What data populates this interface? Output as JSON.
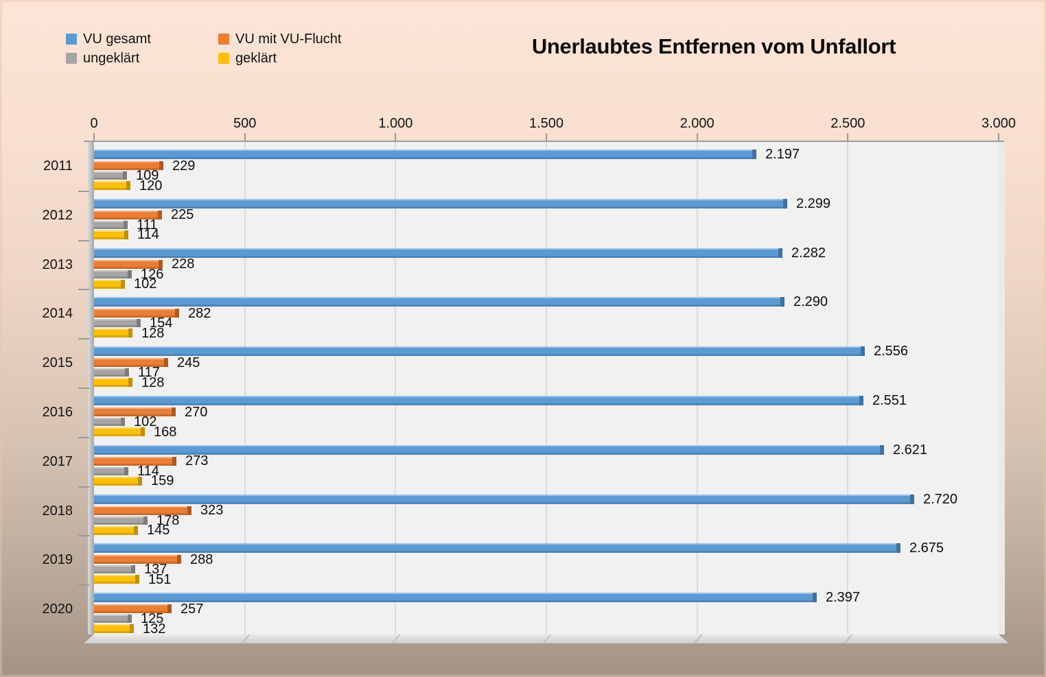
{
  "chart_data": {
    "type": "bar",
    "orientation": "horizontal",
    "title": "Unerlaubtes Entfernen vom Unfallort",
    "categories": [
      "2011",
      "2012",
      "2013",
      "2014",
      "2015",
      "2016",
      "2017",
      "2018",
      "2019",
      "2020"
    ],
    "series": [
      {
        "name": "VU gesamt",
        "color": "#5B9BD5",
        "edge_color": "#41719C",
        "values": [
          2197,
          2299,
          2282,
          2290,
          2556,
          2551,
          2621,
          2720,
          2675,
          2397
        ]
      },
      {
        "name": "VU mit VU-Flucht",
        "color": "#ED7D31",
        "edge_color": "#AE5A21",
        "values": [
          229,
          225,
          228,
          282,
          245,
          270,
          273,
          323,
          288,
          257
        ]
      },
      {
        "name": "ungeklärt",
        "color": "#A5A5A5",
        "edge_color": "#7C7C7C",
        "values": [
          109,
          111,
          126,
          154,
          117,
          102,
          114,
          178,
          137,
          125
        ]
      },
      {
        "name": "geklärt",
        "color": "#FFC000",
        "edge_color": "#BF9000",
        "values": [
          120,
          114,
          102,
          128,
          128,
          168,
          159,
          145,
          151,
          132
        ]
      }
    ],
    "x_ticks": [
      "0",
      "500",
      "1.000",
      "1.500",
      "2.000",
      "2.500",
      "3.000"
    ],
    "xlim": [
      0,
      3000
    ],
    "xlabel": "",
    "ylabel": "",
    "grid": true,
    "legend_position": "top-left",
    "value_labels": true,
    "number_format": "de-DE",
    "plot_background": "#F1F1F2",
    "page_gradient": [
      "#FCE5D7",
      "#A29386"
    ]
  }
}
